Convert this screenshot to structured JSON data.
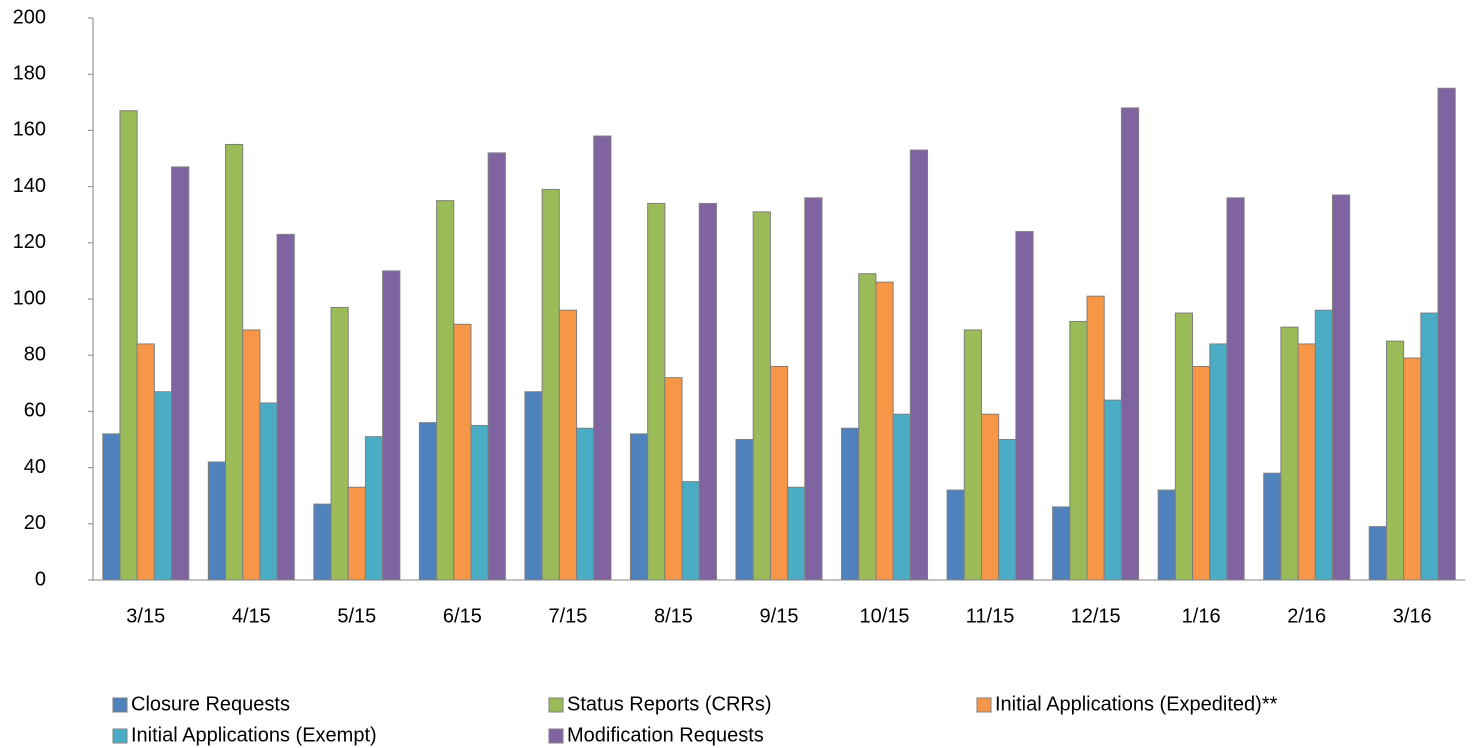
{
  "chart_data": {
    "type": "bar",
    "categories": [
      "3/15",
      "4/15",
      "5/15",
      "6/15",
      "7/15",
      "8/15",
      "9/15",
      "10/15",
      "11/15",
      "12/15",
      "1/16",
      "2/16",
      "3/16"
    ],
    "series": [
      {
        "name": "Closure Requests",
        "color": "#4f81bd",
        "values": [
          52,
          42,
          27,
          56,
          67,
          52,
          50,
          54,
          32,
          26,
          32,
          38,
          19
        ]
      },
      {
        "name": "Status Reports (CRRs)",
        "color": "#9bbb59",
        "values": [
          167,
          155,
          97,
          135,
          139,
          134,
          131,
          109,
          89,
          92,
          95,
          90,
          85
        ]
      },
      {
        "name": "Initial Applications (Expedited)**",
        "color": "#f79646",
        "values": [
          84,
          89,
          33,
          91,
          96,
          72,
          76,
          106,
          59,
          101,
          76,
          84,
          79
        ]
      },
      {
        "name": "Initial Applications (Exempt)",
        "color": "#4bacc6",
        "values": [
          67,
          63,
          51,
          55,
          54,
          35,
          33,
          59,
          50,
          64,
          84,
          96,
          95
        ]
      },
      {
        "name": "Modification Requests",
        "color": "#8064a2",
        "values": [
          147,
          123,
          110,
          152,
          158,
          134,
          136,
          153,
          124,
          168,
          136,
          137,
          175
        ]
      }
    ],
    "ylim": [
      0,
      200
    ],
    "yticks": [
      0,
      20,
      40,
      60,
      80,
      100,
      120,
      140,
      160,
      180,
      200
    ],
    "grid": false,
    "legend": "bottom"
  }
}
